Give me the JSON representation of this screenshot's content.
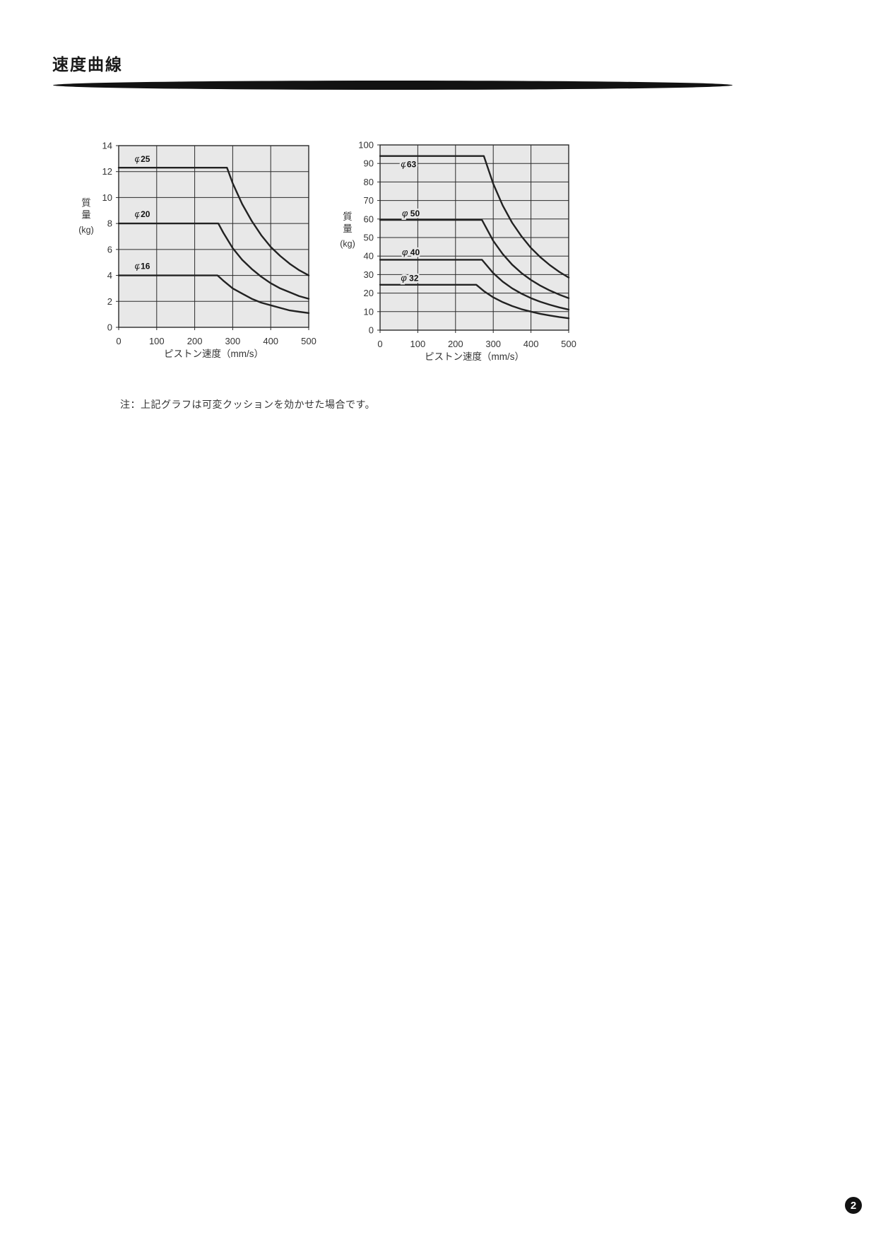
{
  "page": {
    "title": "速度曲線",
    "note": "注：上記グラフは可変クッションを効かせた場合です。",
    "page_number": "2"
  },
  "chart_data": [
    {
      "type": "line",
      "title": "",
      "xlabel": "ピストン速度（mm/s）",
      "ylabel": "質量",
      "ylabel_unit": "(kg)",
      "xlim": [
        0,
        500
      ],
      "ylim": [
        0,
        14
      ],
      "xticks": [
        0,
        100,
        200,
        300,
        400,
        500
      ],
      "yticks": [
        0,
        2,
        4,
        6,
        8,
        10,
        12,
        14
      ],
      "grid": true,
      "legend_position": "inline-labels",
      "plot_bg": "#e8e8e8",
      "grid_color": "#2a2a2a",
      "line_color": "#222222",
      "series": [
        {
          "name": "φ25",
          "label": "φ25",
          "flat_mass": 12.3,
          "knee_speed": 285,
          "end_mass": 4.0,
          "label_x": 42,
          "label_y": 12.75,
          "points": [
            [
              0,
              12.3
            ],
            [
              285,
              12.3
            ],
            [
              300,
              11.1
            ],
            [
              325,
              9.5
            ],
            [
              350,
              8.2
            ],
            [
              375,
              7.1
            ],
            [
              400,
              6.2
            ],
            [
              425,
              5.5
            ],
            [
              450,
              4.9
            ],
            [
              475,
              4.4
            ],
            [
              500,
              4.0
            ]
          ]
        },
        {
          "name": "φ20",
          "label": "φ20",
          "flat_mass": 8.0,
          "knee_speed": 262,
          "end_mass": 2.2,
          "label_x": 42,
          "label_y": 8.5,
          "points": [
            [
              0,
              8.0
            ],
            [
              262,
              8.0
            ],
            [
              275,
              7.3
            ],
            [
              300,
              6.1
            ],
            [
              325,
              5.2
            ],
            [
              350,
              4.5
            ],
            [
              375,
              3.9
            ],
            [
              400,
              3.4
            ],
            [
              425,
              3.0
            ],
            [
              450,
              2.7
            ],
            [
              475,
              2.4
            ],
            [
              500,
              2.2
            ]
          ]
        },
        {
          "name": "φ16",
          "label": "φ16",
          "flat_mass": 4.0,
          "knee_speed": 260,
          "end_mass": 1.1,
          "label_x": 42,
          "label_y": 4.5,
          "points": [
            [
              0,
              4.0
            ],
            [
              260,
              4.0
            ],
            [
              275,
              3.6
            ],
            [
              300,
              3.0
            ],
            [
              325,
              2.6
            ],
            [
              350,
              2.2
            ],
            [
              375,
              1.9
            ],
            [
              400,
              1.7
            ],
            [
              425,
              1.5
            ],
            [
              450,
              1.3
            ],
            [
              475,
              1.2
            ],
            [
              500,
              1.1
            ]
          ]
        }
      ]
    },
    {
      "type": "line",
      "title": "",
      "xlabel": "ピストン速度（mm/s）",
      "ylabel": "質量",
      "ylabel_unit": "(kg)",
      "xlim": [
        0,
        500
      ],
      "ylim": [
        0,
        100
      ],
      "xticks": [
        0,
        100,
        200,
        300,
        400,
        500
      ],
      "yticks": [
        0,
        10,
        20,
        30,
        40,
        50,
        60,
        70,
        80,
        90,
        100
      ],
      "grid": true,
      "legend_position": "inline-labels",
      "plot_bg": "#e8e8e8",
      "grid_color": "#2a2a2a",
      "line_color": "#222222",
      "series": [
        {
          "name": "φ63",
          "label": "φ63",
          "flat_mass": 94,
          "knee_speed": 275,
          "end_mass": 28.4,
          "label_x": 55,
          "label_y": 88,
          "points": [
            [
              0,
              94
            ],
            [
              275,
              94
            ],
            [
              300,
              79.0
            ],
            [
              325,
              67.3
            ],
            [
              350,
              58.0
            ],
            [
              375,
              50.6
            ],
            [
              400,
              44.4
            ],
            [
              425,
              39.4
            ],
            [
              450,
              35.1
            ],
            [
              475,
              31.5
            ],
            [
              500,
              28.4
            ]
          ]
        },
        {
          "name": "φ50",
          "label": "φ 50",
          "flat_mass": 59.5,
          "knee_speed": 270,
          "end_mass": 17.3,
          "label_x": 58,
          "label_y": 61.5,
          "points": [
            [
              0,
              59.5
            ],
            [
              270,
              59.5
            ],
            [
              300,
              48.2
            ],
            [
              325,
              41.1
            ],
            [
              350,
              35.4
            ],
            [
              375,
              30.8
            ],
            [
              400,
              27.1
            ],
            [
              425,
              24.0
            ],
            [
              450,
              21.4
            ],
            [
              475,
              19.2
            ],
            [
              500,
              17.3
            ]
          ]
        },
        {
          "name": "φ40",
          "label": "φ 40",
          "flat_mass": 38,
          "knee_speed": 270,
          "end_mass": 11.1,
          "label_x": 58,
          "label_y": 40.5,
          "points": [
            [
              0,
              38
            ],
            [
              270,
              38
            ],
            [
              300,
              30.8
            ],
            [
              325,
              26.2
            ],
            [
              350,
              22.6
            ],
            [
              375,
              19.7
            ],
            [
              400,
              17.3
            ],
            [
              425,
              15.3
            ],
            [
              450,
              13.7
            ],
            [
              475,
              12.3
            ],
            [
              500,
              11.1
            ]
          ]
        },
        {
          "name": "φ32",
          "label": "φ 32",
          "flat_mass": 24.5,
          "knee_speed": 255,
          "end_mass": 6.4,
          "label_x": 55,
          "label_y": 26.5,
          "points": [
            [
              0,
              24.5
            ],
            [
              255,
              24.5
            ],
            [
              275,
              21.1
            ],
            [
              300,
              17.7
            ],
            [
              325,
              15.1
            ],
            [
              350,
              13.0
            ],
            [
              375,
              11.3
            ],
            [
              400,
              10.0
            ],
            [
              425,
              8.8
            ],
            [
              450,
              7.9
            ],
            [
              475,
              7.1
            ],
            [
              500,
              6.4
            ]
          ]
        }
      ]
    }
  ]
}
